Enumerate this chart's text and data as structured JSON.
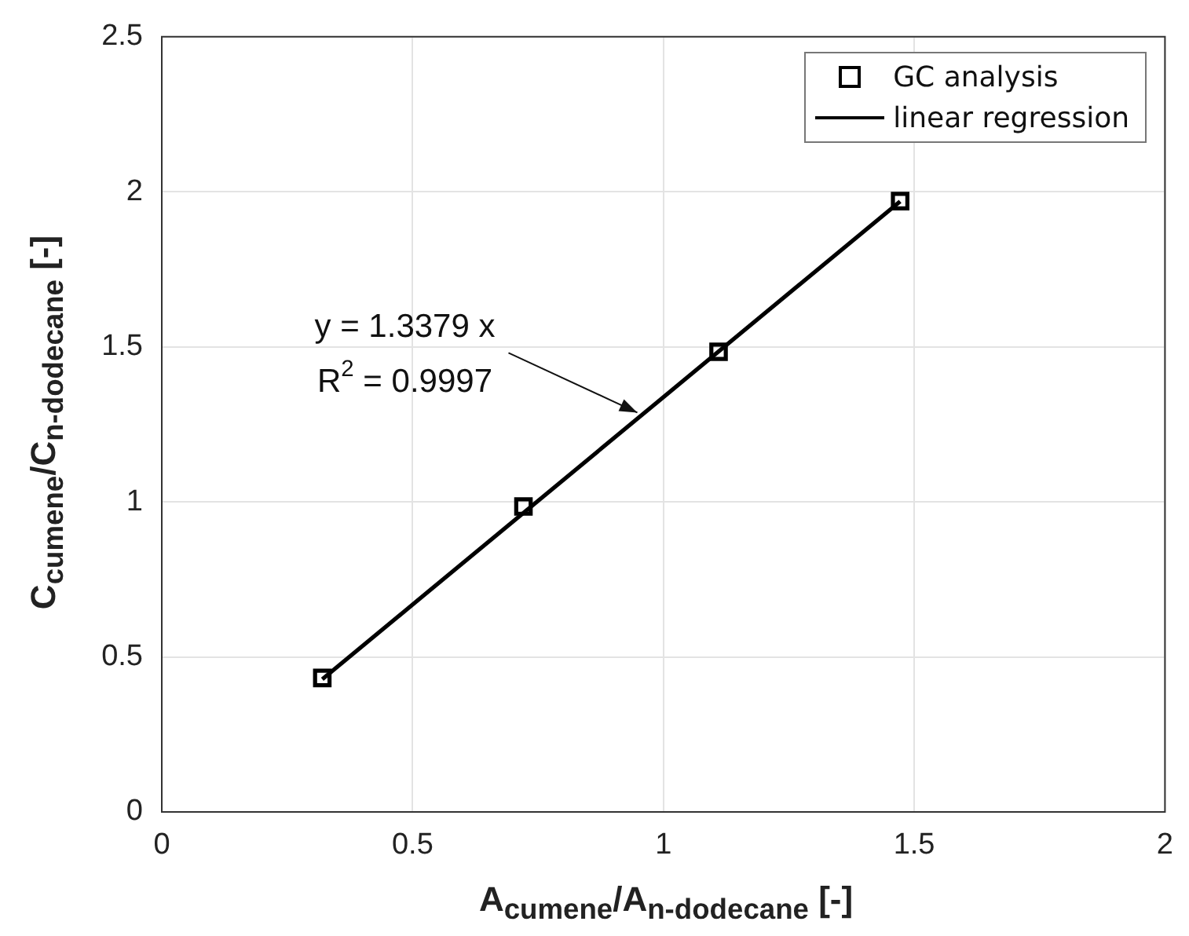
{
  "chart_data": {
    "type": "scatter",
    "xlabel": "A$_{cumene}$/A$_{n-dodecane}$ [-]",
    "ylabel": "C$_{cumene}$/C$_{n-dodecane}$ [-]",
    "series": [
      {
        "name": "GC analysis",
        "type": "scatter",
        "color": "#000000",
        "marker": "square",
        "x": [
          0.32,
          0.721,
          1.11,
          1.472
        ],
        "values": [
          0.432,
          0.985,
          1.484,
          1.97
        ]
      },
      {
        "name": "linear regression",
        "type": "line",
        "color": "#000000",
        "marker": "none",
        "line_style": "solid",
        "x": [
          0.32,
          1.472
        ],
        "values": [
          0.428,
          1.969
        ]
      }
    ],
    "xlim": [
      0,
      2
    ],
    "xticks": [
      0,
      0.5,
      1,
      1.5,
      2
    ],
    "ylim": [
      0,
      2.5
    ],
    "yticks": [
      0,
      0.5,
      1,
      1.5,
      2,
      2.5
    ],
    "grid": true,
    "legend": "top right",
    "annotations": [
      {
        "text": "y = 1.3379 x\nR$^{2}$ = 0.9997",
        "x": 0.948,
        "y": 1.288
      }
    ]
  }
}
